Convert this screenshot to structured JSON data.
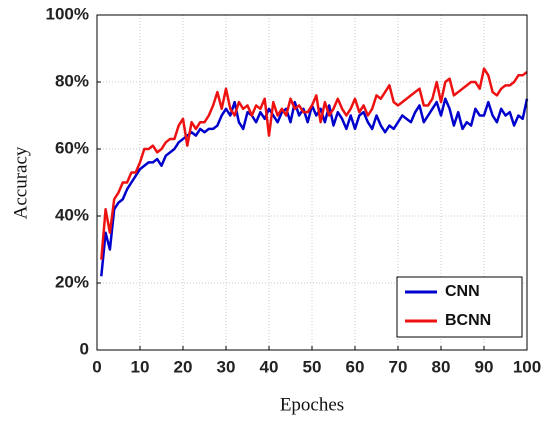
{
  "chart_data": {
    "type": "line",
    "x_label": "Epoches",
    "y_label": "Accuracy",
    "x": [
      1,
      2,
      3,
      4,
      5,
      6,
      7,
      8,
      9,
      10,
      11,
      12,
      13,
      14,
      15,
      16,
      17,
      18,
      19,
      20,
      21,
      22,
      23,
      24,
      25,
      26,
      27,
      28,
      29,
      30,
      31,
      32,
      33,
      34,
      35,
      36,
      37,
      38,
      39,
      40,
      41,
      42,
      43,
      44,
      45,
      46,
      47,
      48,
      49,
      50,
      51,
      52,
      53,
      54,
      55,
      56,
      57,
      58,
      59,
      60,
      61,
      62,
      63,
      64,
      65,
      66,
      67,
      68,
      69,
      70,
      71,
      72,
      73,
      74,
      75,
      76,
      77,
      78,
      79,
      80,
      81,
      82,
      83,
      84,
      85,
      86,
      87,
      88,
      89,
      90,
      91,
      92,
      93,
      94,
      95,
      96,
      97,
      98,
      99,
      100
    ],
    "series": [
      {
        "name": "CNN",
        "color": "#0000cc",
        "values": [
          22,
          35,
          30,
          42,
          44,
          45,
          48,
          50,
          52,
          54,
          55,
          56,
          56,
          57,
          55,
          58,
          59,
          60,
          62,
          63,
          64,
          65,
          64,
          66,
          65,
          66,
          66,
          67,
          70,
          72,
          70,
          74,
          68,
          66,
          71,
          70,
          68,
          71,
          69,
          72,
          70,
          68,
          71,
          72,
          68,
          74,
          70,
          72,
          68,
          73,
          70,
          72,
          68,
          73,
          67,
          71,
          69,
          66,
          70,
          66,
          70,
          71,
          68,
          66,
          70,
          67,
          65,
          67,
          66,
          68,
          70,
          69,
          68,
          71,
          73,
          68,
          70,
          72,
          74,
          70,
          75,
          72,
          67,
          71,
          66,
          68,
          67,
          72,
          70,
          70,
          74,
          70,
          68,
          72,
          70,
          71,
          67,
          70,
          69,
          75
        ]
      },
      {
        "name": "BCNN",
        "color": "#ee1111",
        "values": [
          27,
          42,
          35,
          45,
          47,
          50,
          50,
          53,
          53,
          56,
          60,
          60,
          61,
          59,
          60,
          62,
          63,
          63,
          67,
          69,
          61,
          68,
          66,
          68,
          68,
          70,
          73,
          77,
          72,
          78,
          72,
          70,
          74,
          72,
          73,
          70,
          73,
          72,
          75,
          64,
          74,
          70,
          72,
          70,
          75,
          72,
          73,
          71,
          71,
          73,
          76,
          68,
          74,
          70,
          72,
          75,
          72,
          70,
          72,
          75,
          71,
          73,
          70,
          72,
          76,
          75,
          77,
          79,
          74,
          73,
          74,
          75,
          76,
          77,
          78,
          73,
          73,
          75,
          80,
          74,
          80,
          81,
          76,
          77,
          78,
          79,
          80,
          80,
          78,
          84,
          82,
          77,
          76,
          78,
          79,
          79,
          80,
          82,
          82,
          83
        ]
      }
    ],
    "xlim": [
      0,
      100
    ],
    "xticks": [
      0,
      10,
      20,
      30,
      40,
      50,
      60,
      70,
      80,
      90,
      100
    ],
    "ylim": [
      0,
      100
    ],
    "yticks": [
      0,
      {
        "value": 20,
        "label": "20%"
      },
      {
        "value": 40,
        "label": "40%"
      },
      {
        "value": 60,
        "label": "60%"
      },
      {
        "value": 80,
        "label": "80%"
      },
      {
        "value": 100,
        "label": "100%"
      }
    ],
    "grid": true,
    "legend": "lower right"
  }
}
